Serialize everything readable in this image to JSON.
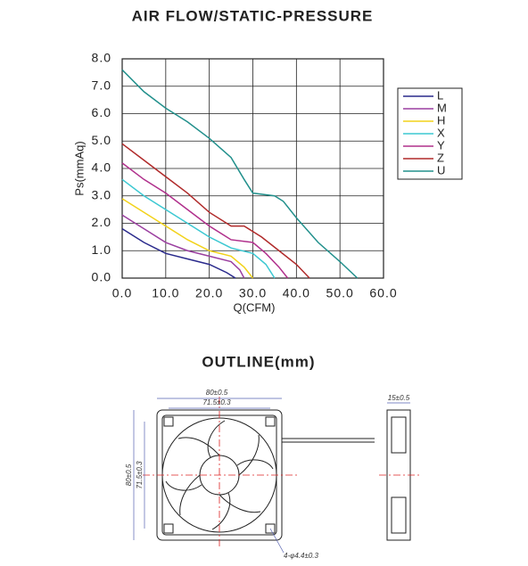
{
  "chart_data": {
    "type": "line",
    "title": "AIR FLOW/STATIC-PRESSURE",
    "x_label": "Q(CFM)",
    "y_label": "Ps(mmAq)",
    "xlim": [
      0,
      60
    ],
    "ylim": [
      0,
      8
    ],
    "xticks": [
      {
        "value": 0,
        "label": "0.0"
      },
      {
        "value": 10,
        "label": "10.0"
      },
      {
        "value": 20,
        "label": "20.0"
      },
      {
        "value": 30,
        "label": "30.0"
      },
      {
        "value": 40,
        "label": "40.0"
      },
      {
        "value": 50,
        "label": "50.0"
      },
      {
        "value": 60,
        "label": "60.0"
      }
    ],
    "yticks": [
      {
        "value": 0,
        "label": "0.0"
      },
      {
        "value": 1,
        "label": "1.0"
      },
      {
        "value": 2,
        "label": "2.0"
      },
      {
        "value": 3,
        "label": "3.0"
      },
      {
        "value": 4,
        "label": "4.0"
      },
      {
        "value": 5,
        "label": "5.0"
      },
      {
        "value": 6,
        "label": "6.0"
      },
      {
        "value": 7,
        "label": "7.0"
      },
      {
        "value": 8,
        "label": "8.0"
      }
    ],
    "grid": true,
    "legend": "right",
    "series": [
      {
        "name": "L",
        "color": "#2a2a8c",
        "x": [
          0,
          5,
          10,
          15,
          20,
          24,
          26
        ],
        "values": [
          1.8,
          1.3,
          0.9,
          0.7,
          0.5,
          0.2,
          0
        ]
      },
      {
        "name": "M",
        "color": "#9b3fa0",
        "x": [
          0,
          5,
          10,
          15,
          20,
          25,
          27,
          28
        ],
        "values": [
          2.3,
          1.8,
          1.3,
          1.0,
          0.8,
          0.6,
          0.3,
          0
        ]
      },
      {
        "name": "H",
        "color": "#f2d21a",
        "x": [
          0,
          5,
          10,
          15,
          20,
          25,
          28,
          30
        ],
        "values": [
          2.9,
          2.4,
          1.9,
          1.4,
          1.0,
          0.8,
          0.4,
          0
        ]
      },
      {
        "name": "X",
        "color": "#3cc8d2",
        "x": [
          0,
          5,
          10,
          15,
          20,
          25,
          30,
          33,
          35
        ],
        "values": [
          3.6,
          3.0,
          2.5,
          2.0,
          1.5,
          1.1,
          0.9,
          0.5,
          0
        ]
      },
      {
        "name": "Y",
        "color": "#b0308c",
        "x": [
          0,
          5,
          10,
          15,
          20,
          25,
          30,
          33,
          36,
          38
        ],
        "values": [
          4.2,
          3.6,
          3.1,
          2.5,
          1.9,
          1.4,
          1.3,
          0.9,
          0.4,
          0
        ]
      },
      {
        "name": "Z",
        "color": "#b02a2a",
        "x": [
          0,
          5,
          10,
          15,
          20,
          25,
          28,
          32,
          36,
          40,
          43
        ],
        "values": [
          4.9,
          4.3,
          3.7,
          3.1,
          2.4,
          1.9,
          1.9,
          1.5,
          1.0,
          0.5,
          0
        ]
      },
      {
        "name": "U",
        "color": "#22908c",
        "x": [
          0,
          5,
          10,
          15,
          20,
          25,
          28,
          30,
          35,
          37,
          40,
          45,
          50,
          54
        ],
        "values": [
          7.6,
          6.8,
          6.2,
          5.7,
          5.1,
          4.4,
          3.6,
          3.1,
          3.0,
          2.8,
          2.2,
          1.3,
          0.6,
          0
        ]
      }
    ]
  },
  "outline": {
    "title": "OUTLINE(mm)",
    "dimensions": [
      "80±0.5",
      "71.5±0.3",
      "80±0.5",
      "71.5±0.3",
      "15±0.5",
      "4-φ4.4±0.3"
    ]
  }
}
